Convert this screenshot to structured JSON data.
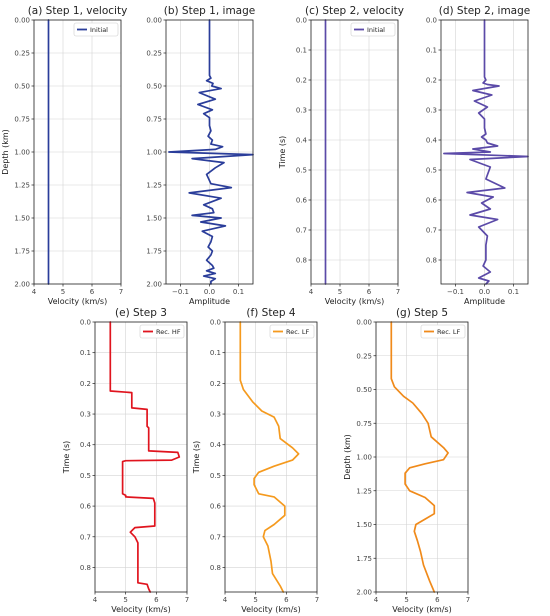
{
  "chart_data": [
    {
      "id": "a",
      "type": "line",
      "title": "(a) Step 1, velocity",
      "xlabel": "Velocity (km/s)",
      "ylabel": "Depth (km)",
      "xlim": [
        4,
        7
      ],
      "ylim": [
        0,
        2
      ],
      "y_inverted": true,
      "grid": true,
      "xticks": [
        4,
        5,
        6,
        7
      ],
      "xticklabels": [
        "4",
        "5",
        "6",
        "7"
      ],
      "yticks": [
        0,
        0.25,
        0.5,
        0.75,
        1,
        1.25,
        1.5,
        1.75,
        2
      ],
      "yticklabels": [
        "0.00",
        "0.25",
        "0.50",
        "0.75",
        "1.00",
        "1.25",
        "1.50",
        "1.75",
        "2.00"
      ],
      "legend": "top-right",
      "series": [
        {
          "name": "Initial",
          "color": "#2a3d9a",
          "x": [
            4.5,
            4.5
          ],
          "y": [
            0,
            2
          ]
        }
      ]
    },
    {
      "id": "b",
      "type": "line",
      "title": "(b) Step 1, image",
      "xlabel": "Amplitude",
      "ylabel": "",
      "xlim": [
        -0.15,
        0.15
      ],
      "ylim": [
        0,
        2
      ],
      "y_inverted": true,
      "grid": true,
      "xticks": [
        -0.1,
        0,
        0.1
      ],
      "xticklabels": [
        "−0.1",
        "0.0",
        "0.1"
      ],
      "yticks": [
        0,
        0.25,
        0.5,
        0.75,
        1,
        1.25,
        1.5,
        1.75,
        2
      ],
      "yticklabels": [
        "0.00",
        "0.25",
        "0.50",
        "0.75",
        "1.00",
        "1.25",
        "1.50",
        "1.75",
        "2.00"
      ],
      "series": [
        {
          "color": "#2a3d9a",
          "x": [
            0,
            0,
            0.005,
            -0.01,
            0.012,
            0.008,
            0.04,
            -0.035,
            0.02,
            -0.04,
            0.01,
            -0.02,
            0,
            0,
            0.005,
            -0.005,
            0.01,
            0.005,
            0.045,
            0.02,
            -0.14,
            0.15,
            -0.06,
            0.05,
            0.02,
            -0.01,
            0.005,
            0.075,
            -0.07,
            0.04,
            -0.02,
            0.01,
            0.015,
            -0.06,
            0.04,
            -0.03,
            0.055,
            -0.025,
            0.01,
            0.005,
            -0.005,
            0.01,
            0.005,
            -0.01,
            0.01,
            0.015,
            -0.01,
            0.02,
            -0.02,
            0.02,
            0.005,
            0.005
          ],
          "y": [
            0,
            0.42,
            0.44,
            0.46,
            0.48,
            0.5,
            0.52,
            0.55,
            0.6,
            0.64,
            0.68,
            0.71,
            0.74,
            0.8,
            0.84,
            0.88,
            0.91,
            0.94,
            0.96,
            0.98,
            1.0,
            1.02,
            1.05,
            1.08,
            1.12,
            1.17,
            1.24,
            1.27,
            1.31,
            1.35,
            1.4,
            1.43,
            1.46,
            1.48,
            1.5,
            1.53,
            1.56,
            1.6,
            1.64,
            1.68,
            1.72,
            1.75,
            1.78,
            1.82,
            1.86,
            1.88,
            1.9,
            1.92,
            1.94,
            1.96,
            1.98,
            2.0
          ]
        }
      ]
    },
    {
      "id": "c",
      "type": "line",
      "title": "(c) Step 2, velocity",
      "xlabel": "Velocity (km/s)",
      "ylabel": "Time (s)",
      "xlim": [
        4,
        7
      ],
      "ylim": [
        0,
        0.88
      ],
      "y_inverted": true,
      "grid": true,
      "xticks": [
        4,
        5,
        6,
        7
      ],
      "xticklabels": [
        "4",
        "5",
        "6",
        "7"
      ],
      "yticks": [
        0,
        0.1,
        0.2,
        0.3,
        0.4,
        0.5,
        0.6,
        0.7,
        0.8
      ],
      "yticklabels": [
        "0.0",
        "0.1",
        "0.2",
        "0.3",
        "0.4",
        "0.5",
        "0.6",
        "0.7",
        "0.8"
      ],
      "legend": "top-right",
      "series": [
        {
          "name": "Initial",
          "color": "#5b4aa8",
          "x": [
            4.5,
            4.5
          ],
          "y": [
            0,
            0.88
          ]
        }
      ]
    },
    {
      "id": "d",
      "type": "line",
      "title": "(d) Step 2, image",
      "xlabel": "Amplitude",
      "ylabel": "",
      "xlim": [
        -0.15,
        0.15
      ],
      "ylim": [
        0,
        0.88
      ],
      "y_inverted": true,
      "grid": true,
      "xticks": [
        -0.1,
        0,
        0.1
      ],
      "xticklabels": [
        "−0.1",
        "0.0",
        "0.1"
      ],
      "yticks": [
        0,
        0.1,
        0.2,
        0.3,
        0.4,
        0.5,
        0.6,
        0.7,
        0.8
      ],
      "yticklabels": [
        "0.0",
        "0.1",
        "0.2",
        "0.3",
        "0.4",
        "0.5",
        "0.6",
        "0.7",
        "0.8"
      ],
      "series": [
        {
          "color": "#5b4aa8",
          "x": [
            0,
            0,
            0.005,
            -0.005,
            0.01,
            0.05,
            -0.04,
            0.025,
            -0.035,
            0.01,
            -0.02,
            0,
            0,
            0.005,
            -0.01,
            0.005,
            0.01,
            0.045,
            -0.04,
            0.02,
            -0.14,
            0.15,
            -0.05,
            0.02,
            0.005,
            0.07,
            -0.06,
            0.03,
            -0.01,
            0.02,
            -0.05,
            0.045,
            -0.02,
            0.01,
            0.005,
            0.005,
            -0.005,
            0.02,
            -0.02,
            0.015,
            0.005
          ],
          "y": [
            0,
            0.19,
            0.2,
            0.21,
            0.215,
            0.22,
            0.235,
            0.25,
            0.27,
            0.29,
            0.31,
            0.33,
            0.36,
            0.38,
            0.39,
            0.4,
            0.41,
            0.42,
            0.43,
            0.44,
            0.445,
            0.455,
            0.465,
            0.49,
            0.53,
            0.56,
            0.575,
            0.59,
            0.61,
            0.63,
            0.65,
            0.665,
            0.69,
            0.72,
            0.75,
            0.8,
            0.82,
            0.84,
            0.86,
            0.87,
            0.88
          ]
        }
      ]
    },
    {
      "id": "e",
      "type": "line",
      "title": "(e) Step 3",
      "xlabel": "Velocity (km/s)",
      "ylabel": "Time (s)",
      "xlim": [
        4,
        7
      ],
      "ylim": [
        0,
        0.88
      ],
      "y_inverted": true,
      "grid": true,
      "xticks": [
        4,
        5,
        6,
        7
      ],
      "xticklabels": [
        "4",
        "5",
        "6",
        "7"
      ],
      "yticks": [
        0,
        0.1,
        0.2,
        0.3,
        0.4,
        0.5,
        0.6,
        0.7,
        0.8
      ],
      "yticklabels": [
        "0.0",
        "0.1",
        "0.2",
        "0.3",
        "0.4",
        "0.5",
        "0.6",
        "0.7",
        "0.8"
      ],
      "legend": "top-right",
      "series": [
        {
          "name": "Rec. HF",
          "color": "#e0141e",
          "x": [
            4.5,
            4.5,
            5.2,
            5.2,
            5.7,
            5.7,
            5.75,
            5.75,
            6.7,
            6.75,
            6.5,
            5.0,
            4.9,
            4.9,
            5.0,
            5.0,
            5.9,
            5.95,
            5.95,
            5.3,
            5.15,
            5.3,
            5.4,
            5.4,
            5.7,
            5.75,
            5.8
          ],
          "y": [
            0,
            0.225,
            0.23,
            0.28,
            0.285,
            0.34,
            0.345,
            0.42,
            0.425,
            0.44,
            0.45,
            0.452,
            0.455,
            0.56,
            0.565,
            0.57,
            0.575,
            0.59,
            0.665,
            0.67,
            0.685,
            0.7,
            0.72,
            0.85,
            0.855,
            0.87,
            0.88
          ]
        }
      ]
    },
    {
      "id": "f",
      "type": "line",
      "title": "(f) Step 4",
      "xlabel": "Velocity (km/s)",
      "ylabel": "Time (s)",
      "xlim": [
        4,
        7
      ],
      "ylim": [
        0,
        0.88
      ],
      "y_inverted": true,
      "grid": true,
      "xticks": [
        4,
        5,
        6,
        7
      ],
      "xticklabels": [
        "4",
        "5",
        "6",
        "7"
      ],
      "yticks": [
        0,
        0.1,
        0.2,
        0.3,
        0.4,
        0.5,
        0.6,
        0.7,
        0.8
      ],
      "yticklabels": [
        "0.0",
        "0.1",
        "0.2",
        "0.3",
        "0.4",
        "0.5",
        "0.6",
        "0.7",
        "0.8"
      ],
      "legend": "top-right",
      "series": [
        {
          "name": "Rec. LF",
          "color": "#f59a1e",
          "x": [
            4.5,
            4.5,
            4.6,
            4.9,
            5.2,
            5.6,
            5.75,
            5.8,
            6.2,
            6.4,
            6.2,
            5.6,
            5.1,
            4.95,
            4.95,
            5.1,
            5.6,
            5.95,
            5.95,
            5.6,
            5.3,
            5.25,
            5.4,
            5.5,
            5.55,
            5.8,
            5.9
          ],
          "y": [
            0,
            0.19,
            0.22,
            0.26,
            0.29,
            0.31,
            0.34,
            0.38,
            0.41,
            0.43,
            0.45,
            0.47,
            0.49,
            0.51,
            0.53,
            0.56,
            0.57,
            0.6,
            0.63,
            0.66,
            0.68,
            0.7,
            0.73,
            0.78,
            0.82,
            0.86,
            0.88
          ]
        }
      ]
    },
    {
      "id": "g",
      "type": "line",
      "title": "(g) Step 5",
      "xlabel": "Velocity (km/s)",
      "ylabel": "Depth (km)",
      "xlim": [
        4,
        7
      ],
      "ylim": [
        0,
        2
      ],
      "y_inverted": true,
      "grid": true,
      "xticks": [
        4,
        5,
        6,
        7
      ],
      "xticklabels": [
        "4",
        "5",
        "6",
        "7"
      ],
      "yticks": [
        0,
        0.25,
        0.5,
        0.75,
        1,
        1.25,
        1.5,
        1.75,
        2
      ],
      "yticklabels": [
        "0.00",
        "0.25",
        "0.50",
        "0.75",
        "1.00",
        "1.25",
        "1.50",
        "1.75",
        "2.00"
      ],
      "legend": "top-right",
      "series": [
        {
          "name": "Rec. LF",
          "color": "#f08a1a",
          "x": [
            4.5,
            4.5,
            4.6,
            4.9,
            5.2,
            5.5,
            5.7,
            5.8,
            6.2,
            6.35,
            6.2,
            5.6,
            5.1,
            4.95,
            4.95,
            5.1,
            5.6,
            5.9,
            5.9,
            5.6,
            5.3,
            5.25,
            5.35,
            5.45,
            5.55,
            5.75,
            5.9
          ],
          "y": [
            0,
            0.42,
            0.48,
            0.55,
            0.6,
            0.68,
            0.75,
            0.85,
            0.93,
            0.97,
            1.02,
            1.05,
            1.08,
            1.12,
            1.2,
            1.25,
            1.3,
            1.36,
            1.42,
            1.46,
            1.5,
            1.55,
            1.62,
            1.7,
            1.8,
            1.92,
            2.0
          ]
        }
      ]
    }
  ]
}
